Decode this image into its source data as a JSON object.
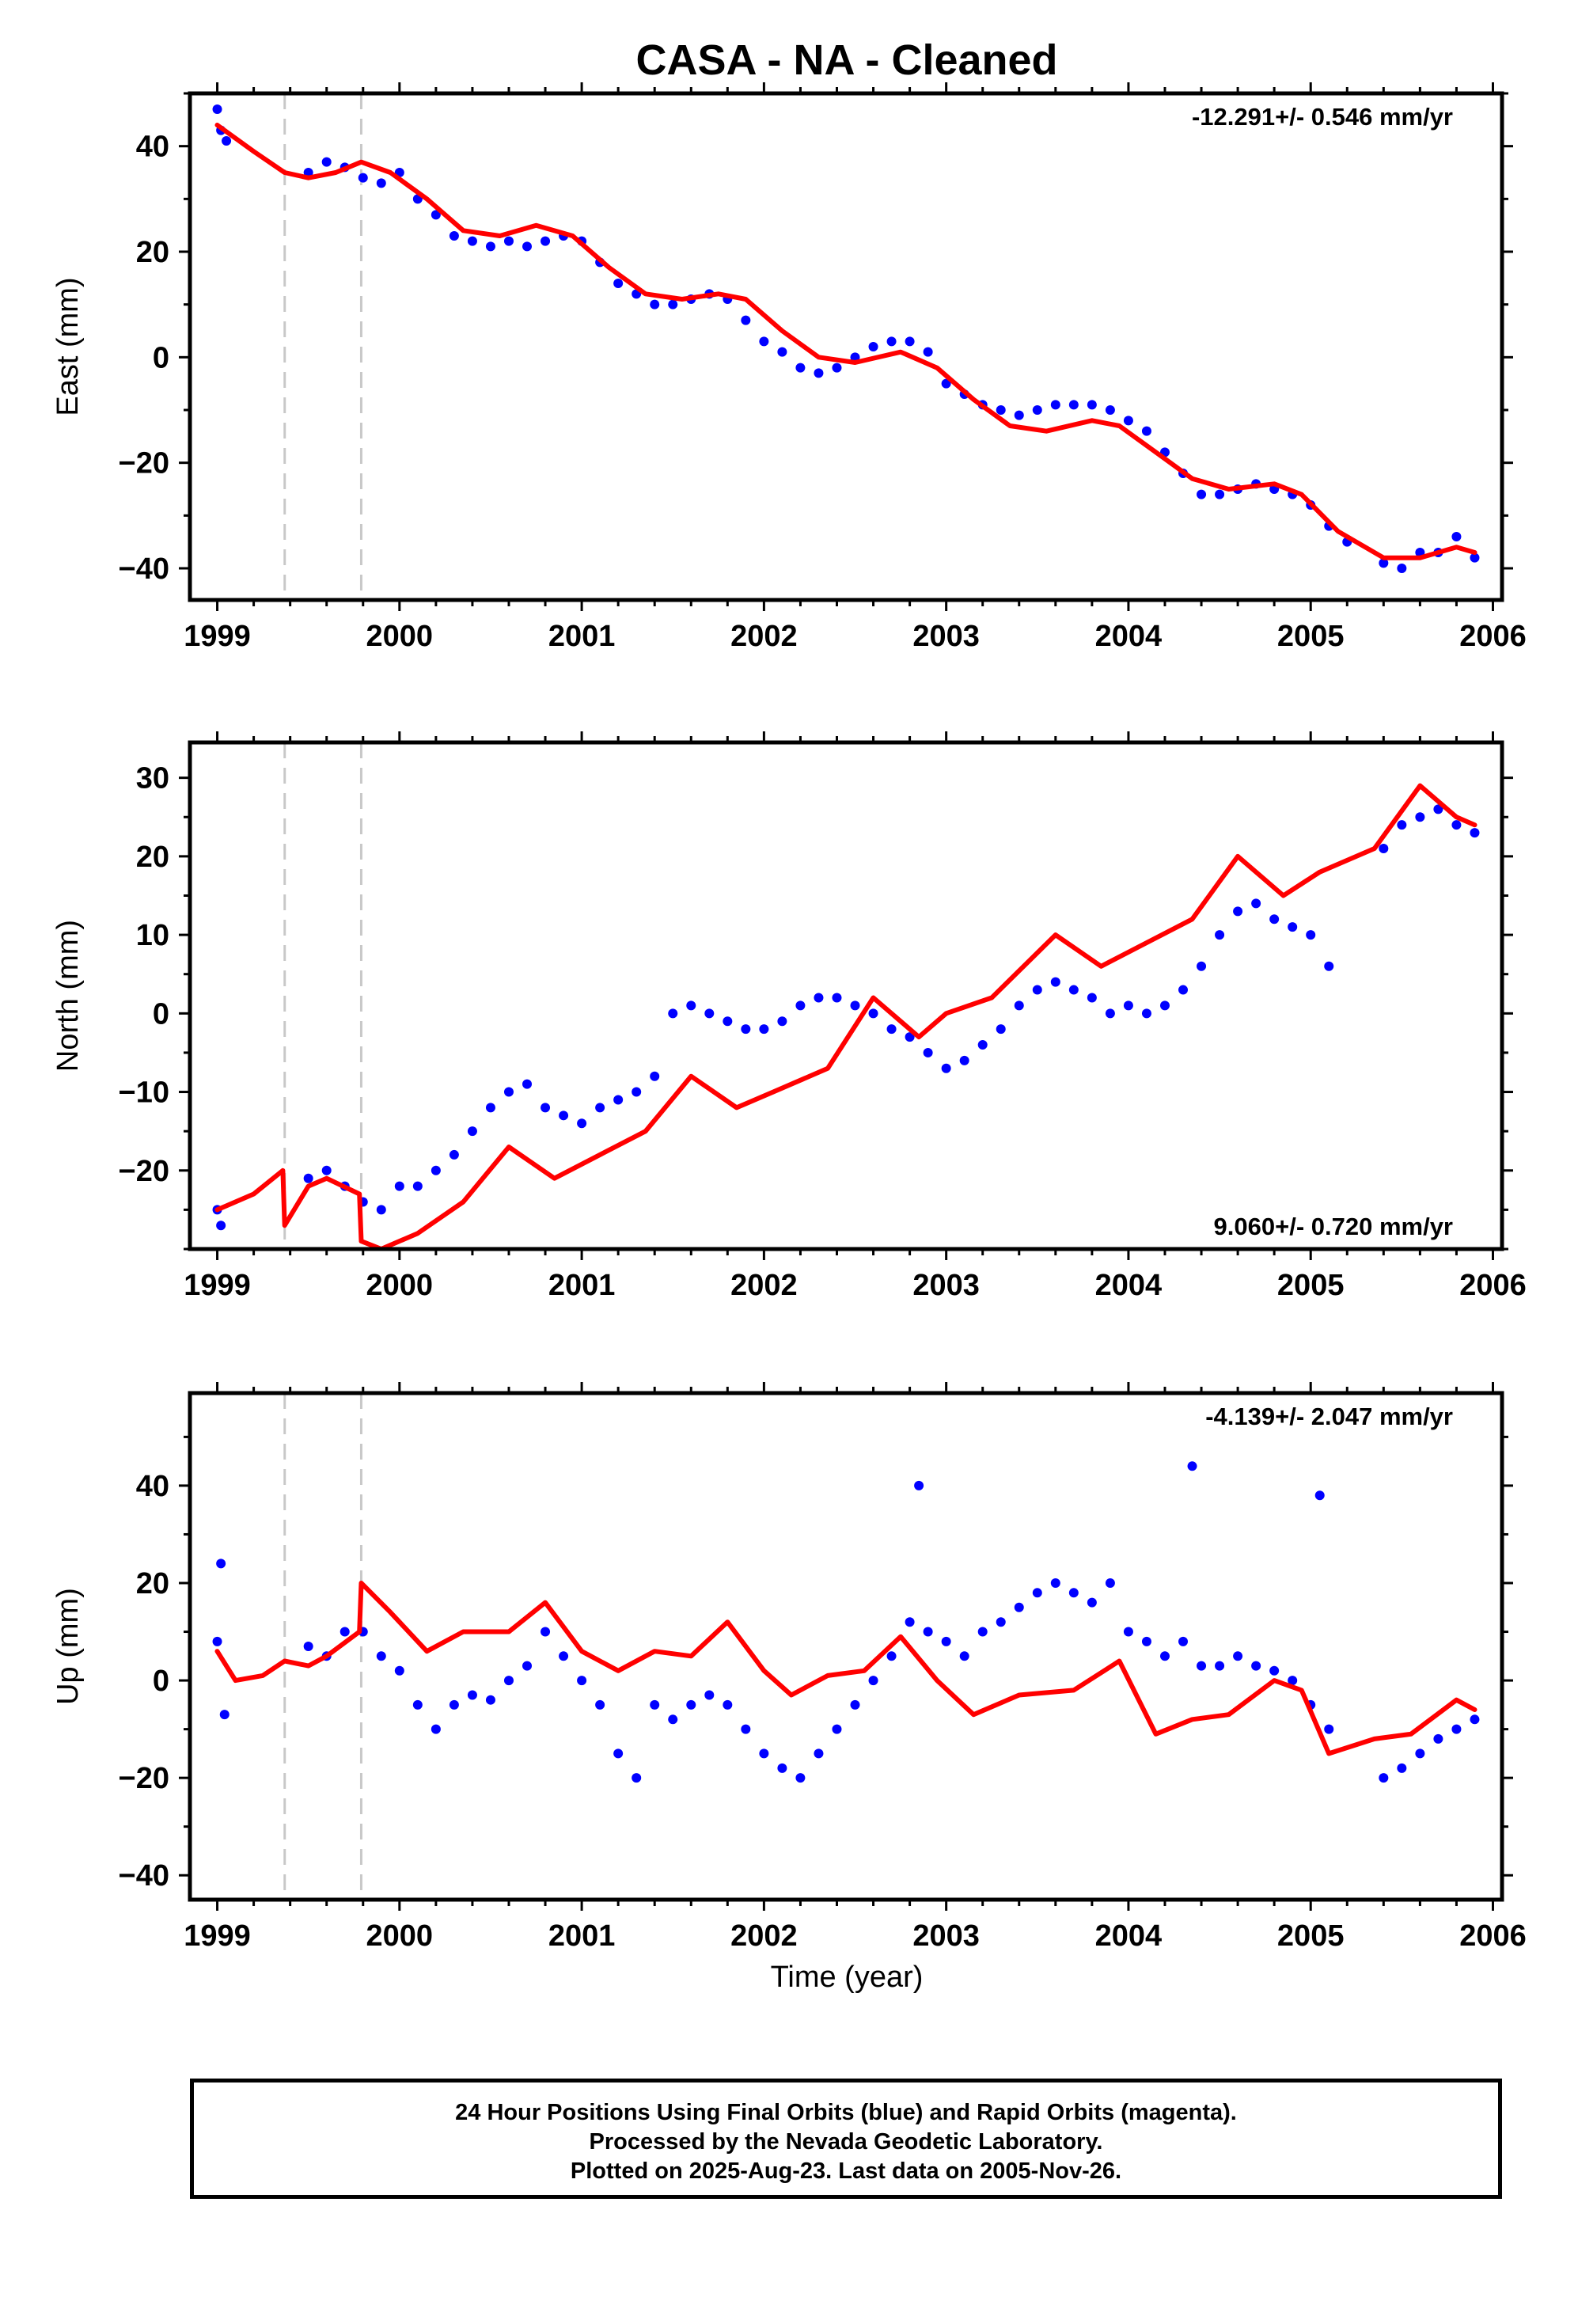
{
  "title": "CASA  - NA - Cleaned",
  "xlabel": "Time (year)",
  "caption": [
    "24 Hour Positions Using Final Orbits (blue) and Rapid Orbits (magenta).",
    "Processed by the Nevada Geodetic Laboratory.",
    "Plotted on 2025-Aug-23. Last data on 2005-Nov-26."
  ],
  "colors": {
    "points": "#0000ff",
    "model": "#ff0000",
    "breaks": "#c8c8c8",
    "frame": "#000000"
  },
  "chart_data": [
    {
      "type": "scatter",
      "ylabel": "East (mm)",
      "rate": "-12.291+/- 0.546 mm/yr",
      "rate_position": "top-right",
      "xlim": [
        1998.85,
        2006.05
      ],
      "ylim": [
        -46,
        50
      ],
      "xticks": [
        1999,
        2000,
        2001,
        2002,
        2003,
        2004,
        2005,
        2006
      ],
      "yticks": [
        -40,
        -20,
        0,
        20,
        40
      ],
      "breaks": [
        1999.37,
        1999.79
      ],
      "series": [
        {
          "kind": "points",
          "x": [
            1999.0,
            1999.02,
            1999.05,
            1999.5,
            1999.6,
            1999.7,
            1999.8,
            1999.9,
            2000.0,
            2000.1,
            2000.2,
            2000.3,
            2000.4,
            2000.5,
            2000.6,
            2000.7,
            2000.8,
            2000.9,
            2001.0,
            2001.1,
            2001.2,
            2001.3,
            2001.4,
            2001.5,
            2001.6,
            2001.7,
            2001.8,
            2001.9,
            2002.0,
            2002.1,
            2002.2,
            2002.3,
            2002.4,
            2002.5,
            2002.6,
            2002.7,
            2002.8,
            2002.9,
            2003.0,
            2003.1,
            2003.2,
            2003.3,
            2003.4,
            2003.5,
            2003.6,
            2003.7,
            2003.8,
            2003.9,
            2004.0,
            2004.1,
            2004.2,
            2004.3,
            2004.4,
            2004.5,
            2004.6,
            2004.7,
            2004.8,
            2004.9,
            2005.0,
            2005.1,
            2005.2,
            2005.4,
            2005.5,
            2005.6,
            2005.7,
            2005.8,
            2005.9
          ],
          "y": [
            47,
            43,
            41,
            35,
            37,
            36,
            34,
            33,
            35,
            30,
            27,
            23,
            22,
            21,
            22,
            21,
            22,
            23,
            22,
            18,
            14,
            12,
            10,
            10,
            11,
            12,
            11,
            7,
            3,
            1,
            -2,
            -3,
            -2,
            0,
            2,
            3,
            3,
            1,
            -5,
            -7,
            -9,
            -10,
            -11,
            -10,
            -9,
            -9,
            -9,
            -10,
            -12,
            -14,
            -18,
            -22,
            -26,
            -26,
            -25,
            -24,
            -25,
            -26,
            -28,
            -32,
            -35,
            -39,
            -40,
            -37,
            -37,
            -34,
            -38
          ]
        },
        {
          "kind": "model",
          "x": [
            1999.0,
            1999.2,
            1999.37,
            1999.5,
            1999.65,
            1999.79,
            1999.95,
            2000.15,
            2000.35,
            2000.55,
            2000.75,
            2000.95,
            2001.15,
            2001.35,
            2001.55,
            2001.75,
            2001.9,
            2002.1,
            2002.3,
            2002.5,
            2002.75,
            2002.95,
            2003.15,
            2003.35,
            2003.55,
            2003.8,
            2003.95,
            2004.15,
            2004.35,
            2004.55,
            2004.8,
            2004.95,
            2005.15,
            2005.4,
            2005.6,
            2005.8,
            2005.9
          ],
          "y": [
            44,
            39,
            35,
            34,
            35,
            37,
            35,
            30,
            24,
            23,
            25,
            23,
            17,
            12,
            11,
            12,
            11,
            5,
            0,
            -1,
            1,
            -2,
            -8,
            -13,
            -14,
            -12,
            -13,
            -18,
            -23,
            -25,
            -24,
            -26,
            -33,
            -38,
            -38,
            -36,
            -37
          ]
        }
      ]
    },
    {
      "type": "scatter",
      "ylabel": "North (mm)",
      "rate": "9.060+/- 0.720 mm/yr",
      "rate_position": "bottom-right",
      "xlim": [
        1998.85,
        2006.05
      ],
      "ylim": [
        -30,
        34.5
      ],
      "xticks": [
        1999,
        2000,
        2001,
        2002,
        2003,
        2004,
        2005,
        2006
      ],
      "yticks": [
        -20,
        -10,
        0,
        10,
        20,
        30
      ],
      "breaks": [
        1999.37,
        1999.79
      ],
      "series": [
        {
          "kind": "points",
          "x": [
            1999.0,
            1999.02,
            1999.5,
            1999.6,
            1999.7,
            1999.8,
            1999.9,
            2000.0,
            2000.1,
            2000.2,
            2000.3,
            2000.4,
            2000.5,
            2000.6,
            2000.7,
            2000.8,
            2000.9,
            2001.0,
            2001.1,
            2001.2,
            2001.3,
            2001.4,
            2001.5,
            2001.6,
            2001.7,
            2001.8,
            2001.9,
            2002.0,
            2002.1,
            2002.2,
            2002.3,
            2002.4,
            2002.5,
            2002.6,
            2002.7,
            2002.8,
            2002.9,
            2003.0,
            2003.1,
            2003.2,
            2003.3,
            2003.4,
            2003.5,
            2003.6,
            2003.7,
            2003.8,
            2003.9,
            2004.0,
            2004.1,
            2004.2,
            2004.3,
            2004.4,
            2004.5,
            2004.6,
            2004.7,
            2004.8,
            2004.9,
            2005.0,
            2005.1,
            2005.4,
            2005.5,
            2005.6,
            2005.7,
            2005.8,
            2005.9
          ],
          "y": [
            -25,
            -27,
            -21,
            -20,
            -22,
            -24,
            -25,
            -22,
            -22,
            -20,
            -18,
            -15,
            -12,
            -10,
            -9,
            -12,
            -13,
            -14,
            -12,
            -11,
            -10,
            -8,
            0,
            1,
            0,
            -1,
            -2,
            -2,
            -1,
            1,
            2,
            2,
            1,
            0,
            -2,
            -3,
            -5,
            -7,
            -6,
            -4,
            -2,
            1,
            3,
            4,
            3,
            2,
            0,
            1,
            0,
            1,
            3,
            6,
            10,
            13,
            14,
            12,
            11,
            10,
            6,
            21,
            24,
            25,
            26,
            24,
            23
          ]
        },
        {
          "kind": "model",
          "x": [
            1999.0,
            1999.2,
            1999.36,
            1999.37,
            1999.5,
            1999.6,
            1999.78,
            1999.79,
            1999.9,
            2000.1,
            2000.35,
            2000.6,
            2000.85,
            2001.1,
            2001.35,
            2001.6,
            2001.85,
            2002.05,
            2002.35,
            2002.6,
            2002.85,
            2003.0,
            2003.25,
            2003.6,
            2003.85,
            2004.1,
            2004.35,
            2004.6,
            2004.85,
            2005.05,
            2005.35,
            2005.6,
            2005.8,
            2005.9
          ],
          "y": [
            -25,
            -23,
            -20,
            -27,
            -22,
            -21,
            -23,
            -29,
            -30,
            -28,
            -24,
            -17,
            -21,
            -18,
            -15,
            -8,
            -12,
            -10,
            -7,
            2,
            -3,
            0,
            2,
            10,
            6,
            9,
            12,
            20,
            15,
            18,
            21,
            29,
            25,
            24
          ]
        }
      ]
    },
    {
      "type": "scatter",
      "ylabel": "Up (mm)",
      "rate": "-4.139+/- 2.047 mm/yr",
      "rate_position": "top-right",
      "xlim": [
        1998.85,
        2006.05
      ],
      "ylim": [
        -45,
        59
      ],
      "xticks": [
        1999,
        2000,
        2001,
        2002,
        2003,
        2004,
        2005,
        2006
      ],
      "yticks": [
        -40,
        -20,
        0,
        20,
        40
      ],
      "breaks": [
        1999.37,
        1999.79
      ],
      "series": [
        {
          "kind": "points",
          "x": [
            1999.0,
            1999.02,
            1999.04,
            1999.5,
            1999.6,
            1999.7,
            1999.8,
            1999.9,
            2000.0,
            2000.1,
            2000.2,
            2000.3,
            2000.4,
            2000.5,
            2000.6,
            2000.7,
            2000.8,
            2000.9,
            2001.0,
            2001.1,
            2001.2,
            2001.3,
            2001.4,
            2001.5,
            2001.6,
            2001.7,
            2001.8,
            2001.9,
            2002.0,
            2002.1,
            2002.2,
            2002.3,
            2002.4,
            2002.5,
            2002.6,
            2002.7,
            2002.8,
            2002.85,
            2002.9,
            2003.0,
            2003.1,
            2003.2,
            2003.3,
            2003.4,
            2003.5,
            2003.6,
            2003.7,
            2003.8,
            2003.9,
            2004.0,
            2004.1,
            2004.2,
            2004.3,
            2004.35,
            2004.4,
            2004.5,
            2004.6,
            2004.7,
            2004.8,
            2004.9,
            2005.0,
            2005.05,
            2005.1,
            2005.4,
            2005.5,
            2005.6,
            2005.7,
            2005.8,
            2005.9
          ],
          "y": [
            8,
            24,
            -7,
            7,
            5,
            10,
            10,
            5,
            2,
            -5,
            -10,
            -5,
            -3,
            -4,
            0,
            3,
            10,
            5,
            0,
            -5,
            -15,
            -20,
            -5,
            -8,
            -5,
            -3,
            -5,
            -10,
            -15,
            -18,
            -20,
            -15,
            -10,
            -5,
            0,
            5,
            12,
            40,
            10,
            8,
            5,
            10,
            12,
            15,
            18,
            20,
            18,
            16,
            20,
            10,
            8,
            5,
            8,
            44,
            3,
            3,
            5,
            3,
            2,
            0,
            -5,
            38,
            -10,
            -20,
            -18,
            -15,
            -12,
            -10,
            -8
          ]
        },
        {
          "kind": "model",
          "x": [
            1999.0,
            1999.1,
            1999.25,
            1999.37,
            1999.5,
            1999.6,
            1999.78,
            1999.79,
            1999.95,
            2000.15,
            2000.35,
            2000.6,
            2000.8,
            2001.0,
            2001.2,
            2001.4,
            2001.6,
            2001.8,
            2002.0,
            2002.15,
            2002.35,
            2002.55,
            2002.75,
            2002.95,
            2003.15,
            2003.4,
            2003.7,
            2003.95,
            2004.15,
            2004.35,
            2004.55,
            2004.8,
            2004.95,
            2005.1,
            2005.35,
            2005.55,
            2005.8,
            2005.9
          ],
          "y": [
            6,
            0,
            1,
            4,
            3,
            5,
            10,
            20,
            14,
            6,
            10,
            10,
            16,
            6,
            2,
            6,
            5,
            12,
            2,
            -3,
            1,
            2,
            9,
            0,
            -7,
            -3,
            -2,
            4,
            -11,
            -8,
            -7,
            0,
            -2,
            -15,
            -12,
            -11,
            -4,
            -6
          ]
        }
      ]
    }
  ]
}
